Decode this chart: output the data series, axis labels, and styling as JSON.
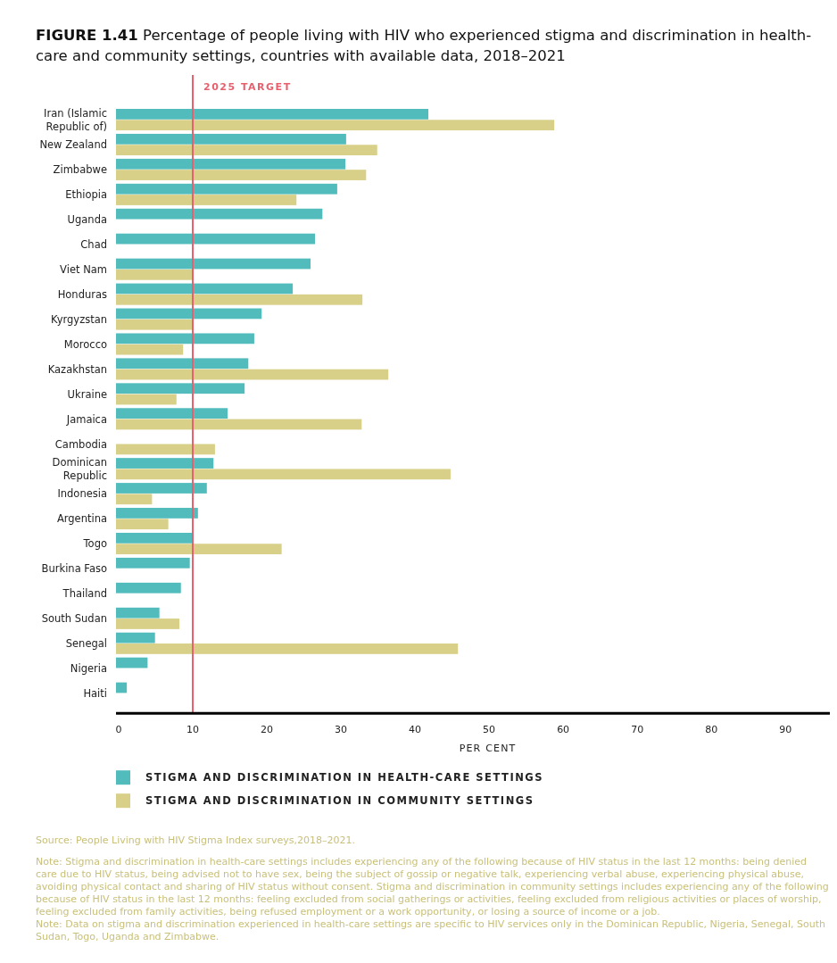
{
  "chart_data": {
    "type": "bar",
    "orientation": "horizontal",
    "title": "FIGURE 1.41 Percentage of people living with HIV who experienced stigma and discrimination in health-care and community settings, countries with available data, 2018–2021",
    "categories": [
      "Iran (Islamic Republic of)",
      "New Zealand",
      "Zimbabwe",
      "Ethiopia",
      "Uganda",
      "Chad",
      "Viet Nam",
      "Honduras",
      "Kyrgyzstan",
      "Morocco",
      "Kazakhstan",
      "Ukraine",
      "Jamaica",
      "Cambodia",
      "Dominican Republic",
      "Indonesia",
      "Argentina",
      "Togo",
      "Burkina Faso",
      "Thailand",
      "South Sudan",
      "Senegal",
      "Nigeria",
      "Haiti"
    ],
    "series": [
      {
        "name": "STIGMA AND DISCRIMINATION IN HEALTH-CARE SETTINGS",
        "color": "#52bcbc",
        "values": [
          41.8,
          30.7,
          30.6,
          29.5,
          27.5,
          26.5,
          25.9,
          23.5,
          19.3,
          18.3,
          17.5,
          17.0,
          14.7,
          null,
          12.8,
          11.9,
          10.7,
          10.0,
          9.6,
          8.4,
          5.5,
          4.9,
          3.9,
          1.1
        ]
      },
      {
        "name": "STIGMA AND DISCRIMINATION IN COMMUNITY SETTINGS",
        "color": "#d8d089",
        "values": [
          58.8,
          34.9,
          33.4,
          24.0,
          null,
          null,
          10.0,
          32.9,
          10.0,
          8.7,
          36.4,
          7.8,
          32.8,
          13.0,
          44.8,
          4.5,
          6.7,
          22.0,
          null,
          null,
          8.2,
          45.8,
          null,
          null
        ]
      }
    ],
    "xlim": [
      0,
      96
    ],
    "xticks": [
      0,
      10,
      20,
      30,
      40,
      50,
      60,
      70,
      80,
      90
    ],
    "xlabel": "PER CENT",
    "ref_lines": [
      {
        "axis": "x",
        "value": 10,
        "label": "2025 TARGET",
        "color": "#e8606e"
      }
    ],
    "legend": "bottom",
    "grid": false,
    "annotations": [
      "Source: People Living with HIV Stigma Index surveys,2018–2021.",
      "Note: Stigma and discrimination in health-care settings includes experiencing any of the following because of HIV status in the last 12 months: being denied care due to HIV status, being advised not to have sex, being the subject of gossip or negative talk, experiencing verbal abuse, experiencing physical abuse, avoiding physical contact and sharing of HIV status without consent. Stigma and discrimination in community settings includes experiencing any of the following because of HIV status in the last 12 months: feeling excluded from social gatherings or activities, feeling excluded from religious activities or places of worship, feeling excluded from family activities, being refused employment or a work opportunity, or losing a source of income or a job.",
      "Note: Data on stigma and discrimination experienced in health-care settings are specific to HIV services only in the Dominican Republic, Nigeria, Senegal, South Sudan, Togo, Uganda and Zimbabwe."
    ]
  }
}
